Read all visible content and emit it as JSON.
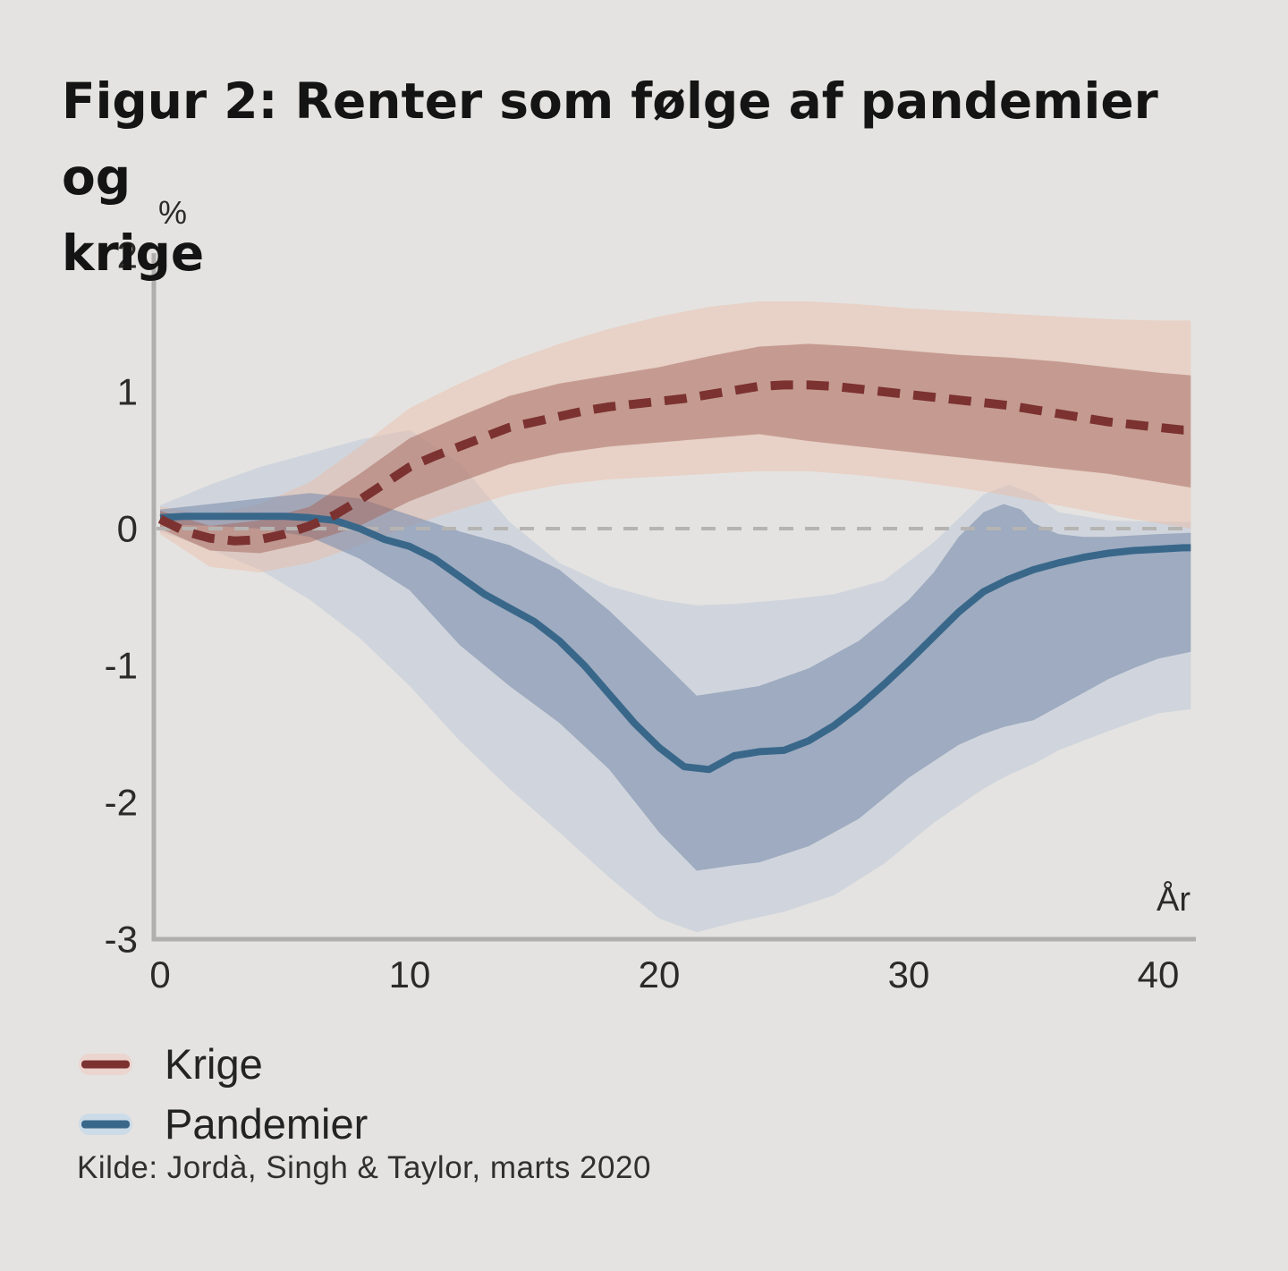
{
  "title": "Figur 2: Renter som følge af pandemier og krige",
  "title_lines": [
    "Figur 2: Renter som følge af pandemier og",
    "krige"
  ],
  "source": "Kilde: Jordà, Singh & Taylor, marts 2020",
  "legend": {
    "items": [
      {
        "label": "Krige",
        "series": "krige"
      },
      {
        "label": "Pandemier",
        "series": "pandemier"
      }
    ]
  },
  "colors": {
    "background": "#e4e3e1",
    "axis": "#b1afad",
    "zero_line": "#b6b4b2",
    "tick_text": "#2b2a29",
    "title_text": "#141414",
    "source_text": "#303030",
    "krige_line": "#7b3230",
    "krige_inner_band": "rgba(164,106,95,0.52)",
    "krige_outer_band": "rgba(238,183,158,0.40)",
    "pandemier_line": "#39678a",
    "pandemier_inner_band": "rgba(125,143,173,0.60)",
    "pandemier_outer_band": "rgba(168,186,214,0.33)",
    "legend_krige_halo": "#ecd4cf",
    "legend_pandemier_halo": "#ccdbe8"
  },
  "chart_data": {
    "type": "line",
    "title": "Figur 2: Renter som følge af pandemier og krige",
    "xlabel": "År",
    "ylabel": "%",
    "x_ticks": [
      0,
      10,
      20,
      30,
      40
    ],
    "y_ticks": [
      2,
      1,
      0,
      -1,
      -2,
      -3
    ],
    "xlim": [
      0,
      41.3
    ],
    "ylim": [
      -3,
      2
    ],
    "zero_line": true,
    "grid": false,
    "legend_position": "below-left",
    "series": [
      {
        "name": "Krige",
        "style": "dashed",
        "x": [
          0,
          1,
          2,
          3,
          4,
          5,
          6,
          7,
          8,
          9,
          10,
          11,
          12,
          13,
          14,
          15,
          16,
          17,
          18,
          19,
          20,
          21,
          22,
          23,
          24,
          25,
          26,
          27,
          28,
          29,
          30,
          31,
          32,
          33,
          34,
          35,
          36,
          37,
          38,
          39,
          40,
          41,
          41.3
        ],
        "y": [
          0.07,
          -0.02,
          -0.07,
          -0.09,
          -0.08,
          -0.04,
          0.02,
          0.1,
          0.21,
          0.33,
          0.45,
          0.53,
          0.6,
          0.67,
          0.74,
          0.78,
          0.82,
          0.86,
          0.89,
          0.91,
          0.93,
          0.95,
          0.98,
          1.01,
          1.04,
          1.05,
          1.05,
          1.04,
          1.02,
          1.0,
          0.98,
          0.96,
          0.94,
          0.92,
          0.9,
          0.87,
          0.84,
          0.81,
          0.78,
          0.76,
          0.74,
          0.72,
          0.72
        ],
        "inner_band": {
          "x": [
            0,
            2,
            4,
            6,
            8,
            10,
            12,
            14,
            16,
            18,
            20,
            22,
            24,
            26,
            28,
            30,
            32,
            34,
            36,
            38,
            40,
            41.3
          ],
          "hi": [
            0.13,
            0.02,
            0.06,
            0.16,
            0.4,
            0.66,
            0.82,
            0.97,
            1.06,
            1.12,
            1.18,
            1.26,
            1.33,
            1.35,
            1.33,
            1.3,
            1.27,
            1.25,
            1.22,
            1.18,
            1.14,
            1.12
          ],
          "lo": [
            0.0,
            -0.16,
            -0.18,
            -0.1,
            0.02,
            0.2,
            0.34,
            0.47,
            0.55,
            0.6,
            0.63,
            0.66,
            0.69,
            0.64,
            0.6,
            0.56,
            0.52,
            0.48,
            0.44,
            0.4,
            0.34,
            0.3
          ]
        },
        "outer_band": {
          "x": [
            0,
            2,
            4,
            6,
            8,
            10,
            12,
            14,
            16,
            18,
            20,
            22,
            24,
            26,
            28,
            30,
            32,
            34,
            36,
            38,
            40,
            41.3
          ],
          "hi": [
            0.16,
            0.1,
            0.18,
            0.34,
            0.6,
            0.88,
            1.06,
            1.22,
            1.35,
            1.46,
            1.55,
            1.62,
            1.66,
            1.66,
            1.64,
            1.61,
            1.59,
            1.57,
            1.55,
            1.53,
            1.52,
            1.52
          ],
          "lo": [
            -0.04,
            -0.28,
            -0.32,
            -0.25,
            -0.12,
            0.02,
            0.14,
            0.25,
            0.32,
            0.36,
            0.38,
            0.4,
            0.42,
            0.42,
            0.39,
            0.35,
            0.3,
            0.24,
            0.17,
            0.1,
            0.04,
            0.0
          ]
        }
      },
      {
        "name": "Pandemier",
        "style": "solid",
        "x": [
          0,
          1,
          2,
          3,
          4,
          5,
          6,
          7,
          8,
          9,
          10,
          11,
          12,
          13,
          14,
          15,
          16,
          17,
          18,
          19,
          20,
          21,
          22,
          23,
          24,
          25,
          26,
          27,
          28,
          29,
          30,
          31,
          32,
          33,
          34,
          35,
          36,
          37,
          38,
          39,
          40,
          41,
          41.3
        ],
        "y": [
          0.08,
          0.09,
          0.09,
          0.09,
          0.09,
          0.09,
          0.08,
          0.06,
          0.0,
          -0.08,
          -0.13,
          -0.22,
          -0.35,
          -0.48,
          -0.58,
          -0.68,
          -0.82,
          -1.0,
          -1.21,
          -1.42,
          -1.6,
          -1.74,
          -1.76,
          -1.66,
          -1.63,
          -1.62,
          -1.55,
          -1.44,
          -1.3,
          -1.14,
          -0.97,
          -0.79,
          -0.61,
          -0.46,
          -0.37,
          -0.3,
          -0.25,
          -0.21,
          -0.18,
          -0.16,
          -0.15,
          -0.14,
          -0.14
        ],
        "inner_band": {
          "x": [
            0,
            2,
            4,
            6,
            8,
            10,
            12,
            14,
            16,
            18,
            20,
            21.5,
            23,
            24,
            26,
            28,
            30,
            31,
            32,
            33,
            33.8,
            34.5,
            35,
            36,
            37,
            38,
            39,
            40,
            41.3
          ],
          "hi": [
            0.14,
            0.18,
            0.22,
            0.26,
            0.22,
            0.1,
            -0.02,
            -0.12,
            -0.3,
            -0.6,
            -0.95,
            -1.22,
            -1.18,
            -1.15,
            -1.02,
            -0.82,
            -0.52,
            -0.32,
            -0.06,
            0.12,
            0.18,
            0.14,
            0.04,
            -0.04,
            -0.06,
            -0.06,
            -0.05,
            -0.04,
            -0.03
          ],
          "lo": [
            0.03,
            0.02,
            0.0,
            -0.06,
            -0.22,
            -0.45,
            -0.85,
            -1.15,
            -1.42,
            -1.76,
            -2.22,
            -2.5,
            -2.46,
            -2.44,
            -2.32,
            -2.12,
            -1.82,
            -1.7,
            -1.58,
            -1.5,
            -1.45,
            -1.42,
            -1.4,
            -1.3,
            -1.2,
            -1.1,
            -1.02,
            -0.95,
            -0.9
          ]
        },
        "outer_band": {
          "x": [
            0,
            2,
            4,
            6,
            8,
            10,
            12,
            14,
            16,
            18,
            20,
            21.5,
            23,
            25,
            27,
            29,
            31,
            33,
            34,
            35,
            36,
            38,
            40,
            41.3
          ],
          "hi": [
            0.17,
            0.32,
            0.45,
            0.55,
            0.65,
            0.72,
            0.48,
            0.05,
            -0.25,
            -0.42,
            -0.52,
            -0.56,
            -0.55,
            -0.52,
            -0.48,
            -0.38,
            -0.1,
            0.25,
            0.32,
            0.25,
            0.12,
            0.06,
            0.05,
            0.05
          ],
          "lo": [
            -0.02,
            -0.15,
            -0.3,
            -0.52,
            -0.8,
            -1.15,
            -1.55,
            -1.9,
            -2.22,
            -2.55,
            -2.85,
            -2.95,
            -2.88,
            -2.8,
            -2.68,
            -2.45,
            -2.15,
            -1.9,
            -1.8,
            -1.72,
            -1.62,
            -1.48,
            -1.35,
            -1.32
          ]
        }
      }
    ]
  }
}
